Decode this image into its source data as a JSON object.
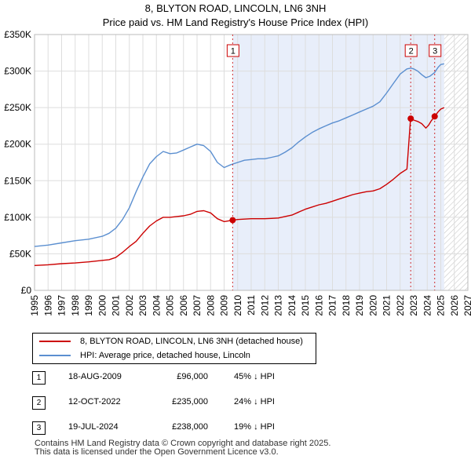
{
  "title": {
    "line1": "8, BLYTON ROAD, LINCOLN, LN6 3NH",
    "line2": "Price paid vs. HM Land Registry's House Price Index (HPI)"
  },
  "colors": {
    "property": "#cc0000",
    "hpi": "#5b8fd0",
    "shade": "#e8eefa",
    "marker_box": "#cc0000"
  },
  "chart_data": {
    "type": "line",
    "xlim": [
      1995,
      2027
    ],
    "ylim": [
      0,
      350000
    ],
    "y_ticks": [
      0,
      50000,
      100000,
      150000,
      200000,
      250000,
      300000,
      350000
    ],
    "y_tick_labels": [
      "£0",
      "£50K",
      "£100K",
      "£150K",
      "£200K",
      "£250K",
      "£300K",
      "£350K"
    ],
    "x_tick_labels": [
      "1995",
      "1996",
      "1997",
      "1998",
      "1999",
      "2000",
      "2001",
      "2002",
      "2003",
      "2004",
      "2005",
      "2006",
      "2007",
      "2008",
      "2009",
      "2010",
      "2011",
      "2012",
      "2013",
      "2014",
      "2015",
      "2016",
      "2017",
      "2018",
      "2019",
      "2020",
      "2021",
      "2022",
      "2023",
      "2024",
      "2025",
      "2026",
      "2027"
    ],
    "shaded_from": 2009.63,
    "hatched_from": 2025.25,
    "series": [
      {
        "name": "8, BLYTON ROAD, LINCOLN, LN6 3NH (detached house)",
        "x": [
          1995,
          1996,
          1997,
          1998,
          1999,
          2000,
          2000.5,
          2001,
          2001.5,
          2002,
          2002.5,
          2003,
          2003.5,
          2004,
          2004.5,
          2005,
          2005.5,
          2006,
          2006.5,
          2007,
          2007.5,
          2008,
          2008.5,
          2009,
          2009.63,
          2010,
          2010.5,
          2011,
          2011.5,
          2012,
          2012.5,
          2013,
          2013.5,
          2014,
          2014.5,
          2015,
          2015.5,
          2016,
          2016.5,
          2017,
          2017.5,
          2018,
          2018.5,
          2019,
          2019.5,
          2020,
          2020.5,
          2021,
          2021.5,
          2022,
          2022.5,
          2022.77,
          2023,
          2023.3,
          2023.6,
          2023.9,
          2024.1,
          2024.3,
          2024.55,
          2024.8,
          2025,
          2025.25
        ],
        "values": [
          34000,
          35000,
          36500,
          37500,
          39000,
          41000,
          42000,
          45000,
          52000,
          60000,
          67000,
          78000,
          88000,
          95000,
          100000,
          100000,
          101000,
          102000,
          104000,
          108000,
          109000,
          106000,
          98000,
          94000,
          96000,
          97000,
          97500,
          98000,
          98000,
          98000,
          98500,
          99000,
          101000,
          103000,
          107000,
          111000,
          114000,
          117000,
          119000,
          122000,
          125000,
          128000,
          131000,
          133000,
          135000,
          136000,
          139000,
          145000,
          152000,
          160000,
          166000,
          235000,
          233000,
          231000,
          228000,
          222000,
          226000,
          232000,
          238000,
          244000,
          248000,
          250000
        ]
      },
      {
        "name": "HPI: Average price, detached house, Lincoln",
        "x": [
          1995,
          1996,
          1997,
          1998,
          1999,
          2000,
          2000.5,
          2001,
          2001.5,
          2002,
          2002.5,
          2003,
          2003.5,
          2004,
          2004.5,
          2005,
          2005.5,
          2006,
          2006.5,
          2007,
          2007.5,
          2008,
          2008.5,
          2009,
          2009.5,
          2010,
          2010.5,
          2011,
          2011.5,
          2012,
          2012.5,
          2013,
          2013.5,
          2014,
          2014.5,
          2015,
          2015.5,
          2016,
          2016.5,
          2017,
          2017.5,
          2018,
          2018.5,
          2019,
          2019.5,
          2020,
          2020.5,
          2021,
          2021.5,
          2022,
          2022.5,
          2022.8,
          2023,
          2023.3,
          2023.6,
          2023.9,
          2024.2,
          2024.55,
          2024.8,
          2025,
          2025.25
        ],
        "values": [
          60000,
          62000,
          65000,
          68000,
          70000,
          74000,
          78000,
          85000,
          97000,
          113000,
          135000,
          155000,
          173000,
          183000,
          190000,
          187000,
          188000,
          192000,
          196000,
          200000,
          198000,
          190000,
          175000,
          168000,
          172000,
          175000,
          178000,
          179000,
          180000,
          180000,
          182000,
          184000,
          189000,
          195000,
          203000,
          210000,
          216000,
          221000,
          225000,
          229000,
          232000,
          236000,
          240000,
          244000,
          248000,
          252000,
          258000,
          270000,
          283000,
          296000,
          303000,
          304000,
          303000,
          300000,
          295000,
          291000,
          293000,
          298000,
          305000,
          309000,
          310000
        ]
      }
    ],
    "transactions": [
      {
        "label": "1",
        "x": 2009.63,
        "value": 96000
      },
      {
        "label": "2",
        "x": 2022.78,
        "value": 235000
      },
      {
        "label": "3",
        "x": 2024.55,
        "value": 238000
      }
    ]
  },
  "legend": {
    "property_label": "8, BLYTON ROAD, LINCOLN, LN6 3NH (detached house)",
    "hpi_label": "HPI: Average price, detached house, Lincoln"
  },
  "transactions_table": [
    {
      "num": "1",
      "date": "18-AUG-2009",
      "price": "£96,000",
      "hpi": "45% ↓ HPI"
    },
    {
      "num": "2",
      "date": "12-OCT-2022",
      "price": "£235,000",
      "hpi": "24% ↓ HPI"
    },
    {
      "num": "3",
      "date": "19-JUL-2024",
      "price": "£238,000",
      "hpi": "19% ↓ HPI"
    }
  ],
  "footer": {
    "line1": "Contains HM Land Registry data © Crown copyright and database right 2025.",
    "line2": "This data is licensed under the Open Government Licence v3.0."
  }
}
